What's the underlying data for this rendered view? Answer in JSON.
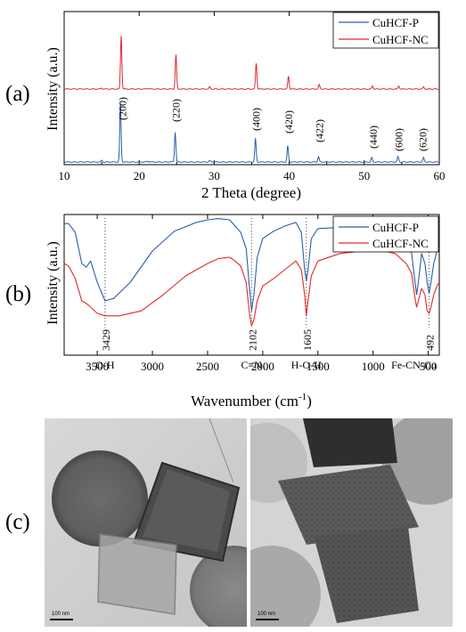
{
  "panels": {
    "a": "(a)",
    "b": "(b)",
    "c": "(c)"
  },
  "colors": {
    "p": "#2a5fa8",
    "nc": "#e0282b"
  },
  "chart_data": [
    {
      "type": "line",
      "xlabel": "2 Theta (degree)",
      "ylabel": "Intensity (a.u.)",
      "xlim": [
        10,
        60
      ],
      "xticks": [
        10,
        20,
        30,
        40,
        50,
        60
      ],
      "legend": {
        "placement": "top-right",
        "entries": [
          "CuHCF-P",
          "CuHCF-NC"
        ]
      },
      "series": [
        {
          "name": "CuHCF-P",
          "peaks": [
            [
              15.0,
              1.5
            ],
            [
              17.5,
              55
            ],
            [
              21.2,
              0.8
            ],
            [
              24.8,
              28
            ],
            [
              29.4,
              1.2
            ],
            [
              35.5,
              22
            ],
            [
              39.8,
              15
            ],
            [
              43.9,
              5
            ],
            [
              51.0,
              4
            ],
            [
              54.5,
              5
            ],
            [
              57.9,
              4
            ]
          ]
        },
        {
          "name": "CuHCF-NC",
          "peaks": [
            [
              15.0,
              1.0
            ],
            [
              17.6,
              50
            ],
            [
              21.2,
              0.8
            ],
            [
              24.9,
              32
            ],
            [
              29.4,
              2
            ],
            [
              35.6,
              24
            ],
            [
              39.9,
              12
            ],
            [
              44.0,
              4
            ],
            [
              51.1,
              3
            ],
            [
              54.6,
              3
            ],
            [
              57.9,
              2
            ]
          ]
        }
      ],
      "annotations": [
        "(200)",
        "(220)",
        "(400)",
        "(420)",
        "(422)",
        "(440)",
        "(600)",
        "(620)"
      ],
      "annotation_x": [
        17.8,
        24.9,
        35.6,
        39.9,
        44.0,
        51.2,
        54.6,
        57.8
      ]
    },
    {
      "type": "line",
      "xlabel": "Wavenumber (cm",
      "xlabel_sup": "-1",
      "xlabel_end": ")",
      "ylabel": "Intensity (a.u.)",
      "xlim": [
        3800,
        400
      ],
      "xticks": [
        3500,
        3000,
        2500,
        2000,
        1500,
        1000,
        500
      ],
      "legend": {
        "placement": "top-right",
        "entries": [
          "CuHCF-P",
          "CuHCF-NC"
        ]
      },
      "series": [
        {
          "name": "CuHCF-P",
          "points": [
            [
              3800,
              0.92
            ],
            [
              3760,
              0.92
            ],
            [
              3700,
              0.85
            ],
            [
              3640,
              0.6
            ],
            [
              3600,
              0.57
            ],
            [
              3560,
              0.62
            ],
            [
              3500,
              0.45
            ],
            [
              3429,
              0.3
            ],
            [
              3350,
              0.32
            ],
            [
              3200,
              0.45
            ],
            [
              3000,
              0.7
            ],
            [
              2800,
              0.86
            ],
            [
              2600,
              0.93
            ],
            [
              2500,
              0.95
            ],
            [
              2400,
              0.96
            ],
            [
              2300,
              0.95
            ],
            [
              2250,
              0.9
            ],
            [
              2200,
              0.85
            ],
            [
              2150,
              0.72
            ],
            [
              2120,
              0.4
            ],
            [
              2102,
              0.22
            ],
            [
              2080,
              0.35
            ],
            [
              2050,
              0.65
            ],
            [
              2000,
              0.8
            ],
            [
              1900,
              0.86
            ],
            [
              1800,
              0.9
            ],
            [
              1700,
              0.93
            ],
            [
              1650,
              0.85
            ],
            [
              1620,
              0.55
            ],
            [
              1605,
              0.46
            ],
            [
              1590,
              0.55
            ],
            [
              1560,
              0.8
            ],
            [
              1500,
              0.88
            ],
            [
              1300,
              0.89
            ],
            [
              1100,
              0.88
            ],
            [
              900,
              0.85
            ],
            [
              800,
              0.82
            ],
            [
              700,
              0.78
            ],
            [
              650,
              0.68
            ],
            [
              620,
              0.45
            ],
            [
              605,
              0.35
            ],
            [
              590,
              0.45
            ],
            [
              560,
              0.68
            ],
            [
              530,
              0.6
            ],
            [
              510,
              0.45
            ],
            [
              492,
              0.36
            ],
            [
              475,
              0.45
            ],
            [
              450,
              0.6
            ],
            [
              420,
              0.7
            ],
            [
              400,
              0.72
            ]
          ]
        },
        {
          "name": "CuHCF-NC",
          "points": [
            [
              3800,
              0.6
            ],
            [
              3760,
              0.58
            ],
            [
              3700,
              0.48
            ],
            [
              3640,
              0.3
            ],
            [
              3600,
              0.28
            ],
            [
              3560,
              0.25
            ],
            [
              3500,
              0.2
            ],
            [
              3429,
              0.18
            ],
            [
              3300,
              0.18
            ],
            [
              3100,
              0.22
            ],
            [
              2900,
              0.35
            ],
            [
              2700,
              0.5
            ],
            [
              2500,
              0.6
            ],
            [
              2400,
              0.64
            ],
            [
              2300,
              0.65
            ],
            [
              2250,
              0.62
            ],
            [
              2200,
              0.58
            ],
            [
              2150,
              0.45
            ],
            [
              2120,
              0.2
            ],
            [
              2102,
              0.1
            ],
            [
              2080,
              0.15
            ],
            [
              2050,
              0.3
            ],
            [
              2000,
              0.42
            ],
            [
              1900,
              0.48
            ],
            [
              1800,
              0.55
            ],
            [
              1700,
              0.62
            ],
            [
              1650,
              0.55
            ],
            [
              1620,
              0.35
            ],
            [
              1605,
              0.18
            ],
            [
              1590,
              0.3
            ],
            [
              1560,
              0.5
            ],
            [
              1500,
              0.62
            ],
            [
              1300,
              0.68
            ],
            [
              1100,
              0.7
            ],
            [
              900,
              0.7
            ],
            [
              800,
              0.68
            ],
            [
              700,
              0.6
            ],
            [
              650,
              0.52
            ],
            [
              620,
              0.32
            ],
            [
              605,
              0.25
            ],
            [
              590,
              0.3
            ],
            [
              560,
              0.4
            ],
            [
              530,
              0.35
            ],
            [
              510,
              0.22
            ],
            [
              492,
              0.2
            ],
            [
              475,
              0.25
            ],
            [
              450,
              0.35
            ],
            [
              420,
              0.42
            ],
            [
              400,
              0.45
            ]
          ]
        }
      ],
      "annotations": [
        {
          "label": "3429",
          "x": 3429
        },
        {
          "label": "2102",
          "x": 2102
        },
        {
          "label": "1605",
          "x": 1605
        },
        {
          "label": "492",
          "x": 492
        }
      ],
      "groups": [
        {
          "label": "O-H",
          "x": 3429
        },
        {
          "label": "C≡N",
          "x": 2102
        },
        {
          "label": "H-O-H",
          "x": 1605
        },
        {
          "label": "Fe-CN-Cu",
          "x": 630
        }
      ]
    }
  ],
  "tem": {
    "left": {
      "scale_label": "100 nm"
    },
    "right": {
      "scale_label": "100 nm"
    }
  }
}
